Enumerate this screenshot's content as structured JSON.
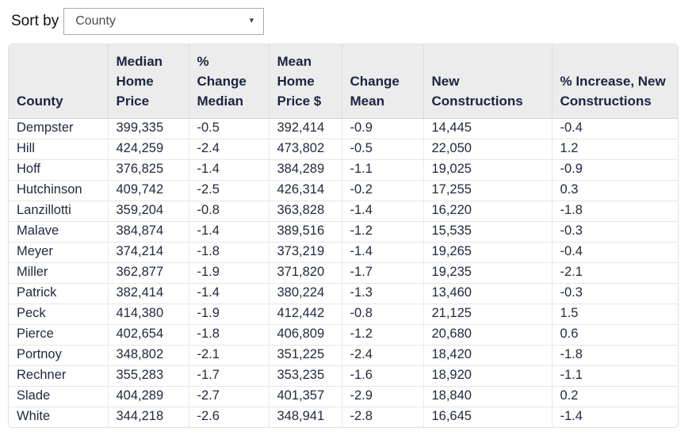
{
  "sort_control": {
    "label": "Sort by",
    "selected": "County"
  },
  "icons": {
    "dropdown_arrow": "▾"
  },
  "colors": {
    "header_bg": "#ececec",
    "header_text": "#1d2342",
    "body_text": "#232940"
  },
  "table": {
    "columns": [
      "County",
      "Median Home Price",
      "% Change Median",
      "Mean Home Price $",
      "Change Mean",
      "New Constructions",
      "% Increase, New Constructions"
    ],
    "rows": [
      [
        "Dempster",
        "399,335",
        "-0.5",
        "392,414",
        "-0.9",
        "14,445",
        "-0.4"
      ],
      [
        "Hill",
        "424,259",
        "-2.4",
        "473,802",
        "-0.5",
        "22,050",
        "1.2"
      ],
      [
        "Hoff",
        "376,825",
        "-1.4",
        "384,289",
        "-1.1",
        "19,025",
        "-0.9"
      ],
      [
        "Hutchinson",
        "409,742",
        "-2.5",
        "426,314",
        "-0.2",
        "17,255",
        "0.3"
      ],
      [
        "Lanzillotti",
        "359,204",
        "-0.8",
        "363,828",
        "-1.4",
        "16,220",
        "-1.8"
      ],
      [
        "Malave",
        "384,874",
        "-1.4",
        "389,516",
        "-1.2",
        "15,535",
        "-0.3"
      ],
      [
        "Meyer",
        "374,214",
        "-1.8",
        "373,219",
        "-1.4",
        "19,265",
        "-0.4"
      ],
      [
        "Miller",
        "362,877",
        "-1.9",
        "371,820",
        "-1.7",
        "19,235",
        "-2.1"
      ],
      [
        "Patrick",
        "382,414",
        "-1.4",
        "380,224",
        "-1.3",
        "13,460",
        "-0.3"
      ],
      [
        "Peck",
        "414,380",
        "-1.9",
        "412,442",
        "-0.8",
        "21,125",
        "1.5"
      ],
      [
        "Pierce",
        "402,654",
        "-1.8",
        "406,809",
        "-1.2",
        "20,680",
        "0.6"
      ],
      [
        "Portnoy",
        "348,802",
        "-2.1",
        "351,225",
        "-2.4",
        "18,420",
        "-1.8"
      ],
      [
        "Rechner",
        "355,283",
        "-1.7",
        "353,235",
        "-1.6",
        "18,920",
        "-1.1"
      ],
      [
        "Slade",
        "404,289",
        "-2.7",
        "401,357",
        "-2.9",
        "18,840",
        "0.2"
      ],
      [
        "White",
        "344,218",
        "-2.6",
        "348,941",
        "-2.8",
        "16,645",
        "-1.4"
      ]
    ]
  }
}
